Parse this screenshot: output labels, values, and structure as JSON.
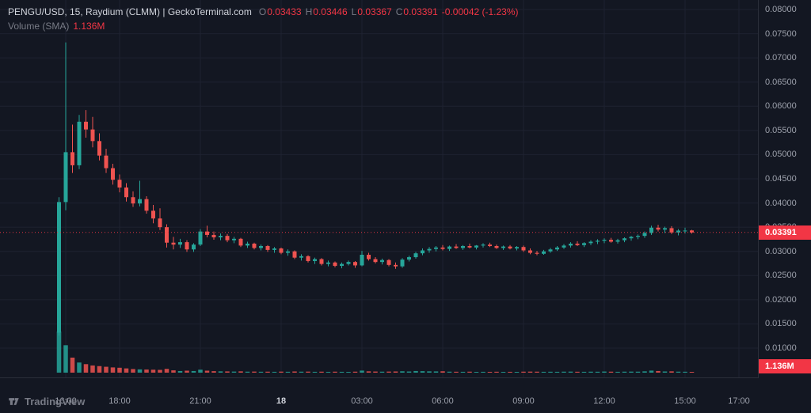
{
  "header": {
    "symbol": "PENGU/USD, 15, Raydium (CLMM) | GeckoTerminal.com",
    "ohlc": [
      {
        "label": "O",
        "value": "0.03433"
      },
      {
        "label": "H",
        "value": "0.03446"
      },
      {
        "label": "L",
        "value": "0.03367"
      },
      {
        "label": "C",
        "value": "0.03391"
      }
    ],
    "change": "-0.00042 (-1.23%)",
    "volume_label": "Volume (SMA)",
    "volume_value": "1.136M"
  },
  "axes": {
    "price_ticks": [
      "0.08000",
      "0.07500",
      "0.07000",
      "0.06500",
      "0.06000",
      "0.05500",
      "0.05000",
      "0.04500",
      "0.04000",
      "0.03500",
      "0.03000",
      "0.02500",
      "0.02000",
      "0.01500",
      "0.01000"
    ],
    "time_ticks": [
      {
        "label": "16:00",
        "bar": 1,
        "emphasis": false
      },
      {
        "label": "18:00",
        "bar": 9,
        "emphasis": false
      },
      {
        "label": "21:00",
        "bar": 21,
        "emphasis": false
      },
      {
        "label": "18",
        "bar": 33,
        "emphasis": true
      },
      {
        "label": "03:00",
        "bar": 45,
        "emphasis": false
      },
      {
        "label": "06:00",
        "bar": 57,
        "emphasis": false
      },
      {
        "label": "09:00",
        "bar": 69,
        "emphasis": false
      },
      {
        "label": "12:00",
        "bar": 81,
        "emphasis": false
      },
      {
        "label": "15:00",
        "bar": 93,
        "emphasis": false
      },
      {
        "label": "17:00",
        "bar": 101,
        "emphasis": false
      }
    ],
    "price_tag": "0.03391",
    "volume_tag": "1.136M"
  },
  "watermark": {
    "text": "TradingView"
  },
  "colors": {
    "background": "#131722",
    "up": "#26a69a",
    "down": "#ef5350",
    "tag": "#f23645",
    "grid": "#1e2230",
    "axis_text": "#9ca0ab",
    "title_text": "#d1d4dc",
    "muted_text": "#787b86"
  },
  "chart_data": {
    "type": "candlestick",
    "title": "PENGU/USD, 15, Raydium (CLMM) | GeckoTerminal.com",
    "symbol": "PENGU/USD",
    "interval_minutes": 15,
    "source": "Raydium (CLMM) | GeckoTerminal.com",
    "first_bar_time": "15:45",
    "date_change_label": "18",
    "y_range": [
      0.01,
      0.08
    ],
    "grid": true,
    "last_price": 0.03391,
    "current_candle": {
      "open": 0.03433,
      "high": 0.03446,
      "low": 0.03367,
      "close": 0.03391,
      "change": -0.00042,
      "change_pct": -1.23
    },
    "volume_sma": "1.136M",
    "volume_unit": "M",
    "candles_format": [
      "open",
      "high",
      "low",
      "close",
      "volume_millions"
    ],
    "candles": [
      [
        0.0132,
        0.0412,
        0.0126,
        0.0402,
        12.6
      ],
      [
        0.0402,
        0.0732,
        0.0385,
        0.0505,
        8.4
      ],
      [
        0.0505,
        0.0562,
        0.0462,
        0.0478,
        4.6
      ],
      [
        0.0478,
        0.0582,
        0.047,
        0.0568,
        3.1
      ],
      [
        0.0568,
        0.0592,
        0.0535,
        0.0552,
        2.6
      ],
      [
        0.0552,
        0.0578,
        0.0515,
        0.0528,
        2.2
      ],
      [
        0.0528,
        0.0544,
        0.0488,
        0.0498,
        2.0
      ],
      [
        0.0498,
        0.0512,
        0.0462,
        0.0472,
        1.8
      ],
      [
        0.0472,
        0.0481,
        0.0438,
        0.0448,
        1.6
      ],
      [
        0.0448,
        0.0459,
        0.0422,
        0.0432,
        1.5
      ],
      [
        0.0432,
        0.0441,
        0.0403,
        0.0412,
        1.3
      ],
      [
        0.0412,
        0.0424,
        0.0392,
        0.0399,
        1.1
      ],
      [
        0.0399,
        0.0446,
        0.0393,
        0.0408,
        1.0
      ],
      [
        0.0408,
        0.0414,
        0.0378,
        0.0384,
        0.95
      ],
      [
        0.0384,
        0.0396,
        0.0358,
        0.0368,
        0.9
      ],
      [
        0.0368,
        0.0389,
        0.0344,
        0.035,
        0.85
      ],
      [
        0.035,
        0.0356,
        0.0308,
        0.0318,
        1.15
      ],
      [
        0.0318,
        0.033,
        0.0304,
        0.0314,
        0.7
      ],
      [
        0.0314,
        0.0326,
        0.0307,
        0.0319,
        0.5
      ],
      [
        0.0319,
        0.0323,
        0.0299,
        0.0304,
        0.6
      ],
      [
        0.0304,
        0.0317,
        0.0299,
        0.0314,
        0.5
      ],
      [
        0.0314,
        0.0346,
        0.0311,
        0.0341,
        0.9
      ],
      [
        0.0341,
        0.0353,
        0.0329,
        0.0334,
        0.6
      ],
      [
        0.0334,
        0.0341,
        0.0324,
        0.0329,
        0.45
      ],
      [
        0.0329,
        0.0337,
        0.0323,
        0.0332,
        0.4
      ],
      [
        0.0332,
        0.0336,
        0.0319,
        0.0323,
        0.38
      ],
      [
        0.0323,
        0.033,
        0.0317,
        0.0326,
        0.33
      ],
      [
        0.0326,
        0.0328,
        0.0309,
        0.0312,
        0.4
      ],
      [
        0.0312,
        0.032,
        0.0307,
        0.0316,
        0.3
      ],
      [
        0.0316,
        0.0318,
        0.0304,
        0.0307,
        0.33
      ],
      [
        0.0307,
        0.0314,
        0.0302,
        0.0311,
        0.28
      ],
      [
        0.0311,
        0.0313,
        0.0299,
        0.0303,
        0.3
      ],
      [
        0.0303,
        0.0309,
        0.0297,
        0.0306,
        0.26
      ],
      [
        0.0306,
        0.0308,
        0.0294,
        0.0297,
        0.32
      ],
      [
        0.0297,
        0.0304,
        0.0291,
        0.03,
        0.27
      ],
      [
        0.03,
        0.0302,
        0.0284,
        0.0287,
        0.36
      ],
      [
        0.0287,
        0.0294,
        0.0281,
        0.029,
        0.3
      ],
      [
        0.029,
        0.0292,
        0.0277,
        0.028,
        0.32
      ],
      [
        0.028,
        0.0287,
        0.0274,
        0.0284,
        0.26
      ],
      [
        0.0284,
        0.0286,
        0.0271,
        0.0274,
        0.3
      ],
      [
        0.0274,
        0.0281,
        0.0269,
        0.0277,
        0.25
      ],
      [
        0.0277,
        0.0279,
        0.0267,
        0.027,
        0.3
      ],
      [
        0.027,
        0.0277,
        0.0265,
        0.0274,
        0.26
      ],
      [
        0.0274,
        0.0281,
        0.0271,
        0.0278,
        0.24
      ],
      [
        0.0278,
        0.028,
        0.0266,
        0.0271,
        0.3
      ],
      [
        0.0271,
        0.0301,
        0.0269,
        0.0293,
        0.62
      ],
      [
        0.0293,
        0.0297,
        0.0281,
        0.0284,
        0.4
      ],
      [
        0.0284,
        0.0288,
        0.0275,
        0.0278,
        0.34
      ],
      [
        0.0278,
        0.0285,
        0.0273,
        0.0282,
        0.3
      ],
      [
        0.0282,
        0.0284,
        0.0269,
        0.0272,
        0.33
      ],
      [
        0.0272,
        0.0277,
        0.0264,
        0.0269,
        0.36
      ],
      [
        0.0269,
        0.0286,
        0.0266,
        0.0283,
        0.42
      ],
      [
        0.0283,
        0.0291,
        0.0279,
        0.0288,
        0.35
      ],
      [
        0.0288,
        0.0299,
        0.0285,
        0.0296,
        0.5
      ],
      [
        0.0296,
        0.0306,
        0.0292,
        0.0302,
        0.45
      ],
      [
        0.0302,
        0.0309,
        0.0297,
        0.0305,
        0.4
      ],
      [
        0.0305,
        0.0311,
        0.03,
        0.0308,
        0.38
      ],
      [
        0.0308,
        0.0313,
        0.0302,
        0.0305,
        0.42
      ],
      [
        0.0305,
        0.0312,
        0.0301,
        0.031,
        0.3
      ],
      [
        0.031,
        0.0315,
        0.0305,
        0.0307,
        0.28
      ],
      [
        0.0307,
        0.0313,
        0.0303,
        0.0311,
        0.26
      ],
      [
        0.0311,
        0.0316,
        0.0306,
        0.0308,
        0.3
      ],
      [
        0.0308,
        0.0313,
        0.0304,
        0.0312,
        0.24
      ],
      [
        0.0312,
        0.0317,
        0.0308,
        0.0314,
        0.26
      ],
      [
        0.0314,
        0.0318,
        0.0309,
        0.0311,
        0.25
      ],
      [
        0.0311,
        0.0314,
        0.0305,
        0.0307,
        0.28
      ],
      [
        0.0307,
        0.0312,
        0.0303,
        0.031,
        0.24
      ],
      [
        0.031,
        0.0313,
        0.0304,
        0.0306,
        0.26
      ],
      [
        0.0306,
        0.0311,
        0.0302,
        0.0309,
        0.23
      ],
      [
        0.0309,
        0.0312,
        0.0299,
        0.0302,
        0.3
      ],
      [
        0.0302,
        0.0306,
        0.0294,
        0.0297,
        0.32
      ],
      [
        0.0297,
        0.0301,
        0.0292,
        0.0295,
        0.3
      ],
      [
        0.0295,
        0.0303,
        0.0293,
        0.03,
        0.26
      ],
      [
        0.03,
        0.0307,
        0.0297,
        0.0304,
        0.28
      ],
      [
        0.0304,
        0.0311,
        0.0301,
        0.0308,
        0.26
      ],
      [
        0.0308,
        0.0315,
        0.0305,
        0.0312,
        0.3
      ],
      [
        0.0312,
        0.0319,
        0.0308,
        0.0316,
        0.32
      ],
      [
        0.0316,
        0.0321,
        0.0311,
        0.0313,
        0.28
      ],
      [
        0.0313,
        0.0319,
        0.0309,
        0.0317,
        0.26
      ],
      [
        0.0317,
        0.0323,
        0.0313,
        0.032,
        0.3
      ],
      [
        0.032,
        0.0325,
        0.0315,
        0.0322,
        0.28
      ],
      [
        0.0322,
        0.0327,
        0.0317,
        0.0324,
        0.34
      ],
      [
        0.0324,
        0.0328,
        0.0318,
        0.032,
        0.3
      ],
      [
        0.032,
        0.0326,
        0.0316,
        0.0323,
        0.26
      ],
      [
        0.0323,
        0.0329,
        0.0319,
        0.0327,
        0.3
      ],
      [
        0.0327,
        0.0332,
        0.0322,
        0.033,
        0.32
      ],
      [
        0.033,
        0.0335,
        0.0325,
        0.0332,
        0.3
      ],
      [
        0.0332,
        0.0341,
        0.0328,
        0.0338,
        0.4
      ],
      [
        0.0338,
        0.0353,
        0.0334,
        0.0349,
        0.62
      ],
      [
        0.0349,
        0.0355,
        0.0341,
        0.0345,
        0.5
      ],
      [
        0.0345,
        0.0351,
        0.0338,
        0.0348,
        0.36
      ],
      [
        0.0348,
        0.0352,
        0.0336,
        0.0339,
        0.4
      ],
      [
        0.0339,
        0.0346,
        0.0333,
        0.0343,
        0.3
      ],
      [
        0.0343,
        0.0349,
        0.0337,
        0.0343,
        0.28
      ],
      [
        0.03433,
        0.03446,
        0.03367,
        0.03391,
        0.22
      ]
    ]
  }
}
